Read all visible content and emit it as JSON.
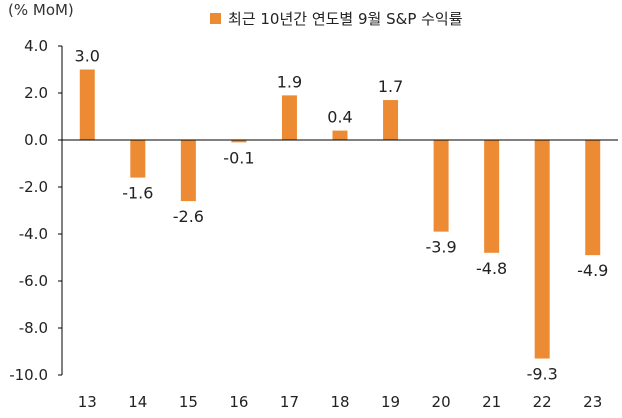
{
  "chart_data": {
    "type": "bar",
    "unit_label": "(% MoM)",
    "legend": "최근 10년간 연도별 9월 S&P 수익률",
    "categories": [
      "13",
      "14",
      "15",
      "16",
      "17",
      "18",
      "19",
      "20",
      "21",
      "22",
      "23"
    ],
    "series": [
      {
        "name": "최근 10년간 연도별 9월 S&P 수익률",
        "values": [
          3.0,
          -1.6,
          -2.6,
          -0.1,
          1.9,
          0.4,
          1.7,
          -3.9,
          -4.8,
          -9.3,
          -4.9
        ]
      }
    ],
    "data_labels": [
      "3.0",
      "-1.6",
      "-2.6",
      "-0.1",
      "1.9",
      "0.4",
      "1.7",
      "-3.9",
      "-4.8",
      "-9.3",
      "-4.9"
    ],
    "ylim": [
      -10.0,
      4.0
    ],
    "yticks": [
      "4.0",
      "2.0",
      "0.0",
      "-2.0",
      "-4.0",
      "-6.0",
      "-8.0",
      "-10.0"
    ],
    "bar_color": "#ED8B35",
    "grid": false,
    "legend_position": "top"
  }
}
